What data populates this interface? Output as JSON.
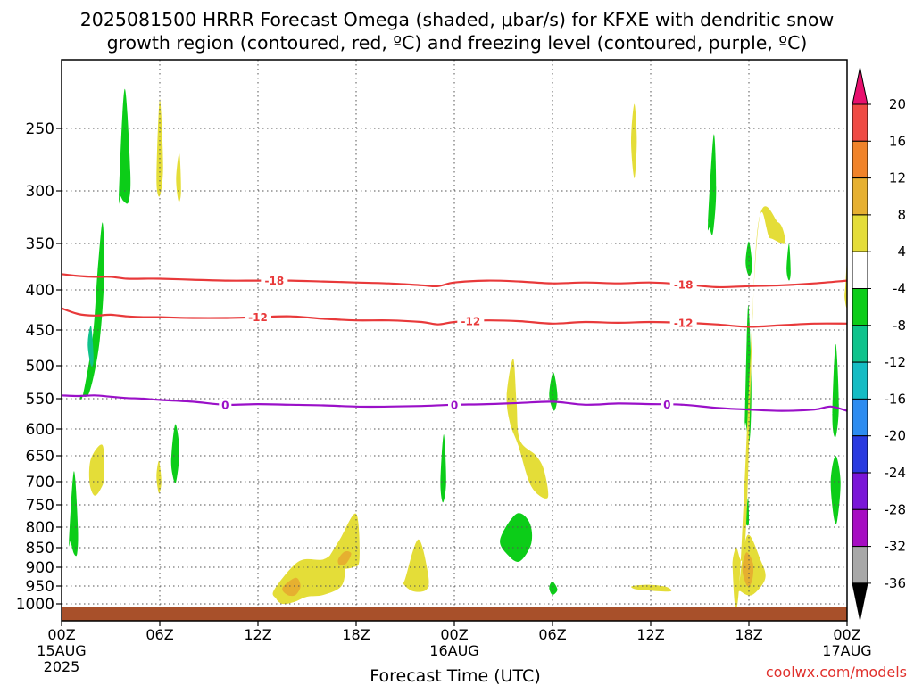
{
  "title_line1": "2025081500 HRRR Forecast Omega (shaded, μbar/s) for KFXE with dendritic snow",
  "title_line2": "growth region (contoured, red, ºC) and freezing level (contoured, purple, ºC)",
  "xlabel": "Forecast Time (UTC)",
  "credit": "coolwx.com/models",
  "chart_data": {
    "type": "time-height",
    "ylabel": "",
    "ylevels": [
      250,
      300,
      350,
      400,
      450,
      500,
      550,
      600,
      650,
      700,
      750,
      800,
      850,
      900,
      950,
      1000
    ],
    "ylim": [
      1040,
      180
    ],
    "xlim": [
      0,
      48
    ],
    "x_ticks": [
      {
        "hour": 0,
        "label": "00Z",
        "sub1": "15AUG",
        "sub2": "2025"
      },
      {
        "hour": 6,
        "label": "06Z",
        "sub1": "",
        "sub2": ""
      },
      {
        "hour": 12,
        "label": "12Z",
        "sub1": "",
        "sub2": ""
      },
      {
        "hour": 18,
        "label": "18Z",
        "sub1": "",
        "sub2": ""
      },
      {
        "hour": 24,
        "label": "00Z",
        "sub1": "16AUG",
        "sub2": ""
      },
      {
        "hour": 30,
        "label": "06Z",
        "sub1": "",
        "sub2": ""
      },
      {
        "hour": 36,
        "label": "12Z",
        "sub1": "",
        "sub2": ""
      },
      {
        "hour": 42,
        "label": "18Z",
        "sub1": "",
        "sub2": ""
      },
      {
        "hour": 48,
        "label": "00Z",
        "sub1": "17AUG",
        "sub2": ""
      }
    ],
    "colorbar": {
      "ticks": [
        "20",
        "16",
        "12",
        "8",
        "4",
        "-4",
        "-8",
        "-12",
        "-16",
        "-20",
        "-24",
        "-28",
        "-32",
        "-36"
      ],
      "colors": [
        "#e8106e",
        "#ef4b44",
        "#f0832a",
        "#e6b030",
        "#e4dd38",
        "#ffffff",
        "#0ccd18",
        "#0fc38c",
        "#15bcc4",
        "#2d8cf0",
        "#2a3ae0",
        "#7a16d8",
        "#a60dc2",
        "#a8a8a8",
        "#000000"
      ]
    },
    "contours": [
      {
        "name": "-18",
        "color": "#e8393a",
        "kind": "dendritic",
        "x": [
          0,
          1,
          2,
          3,
          4,
          5,
          6,
          8,
          10,
          12,
          14,
          16,
          18,
          20,
          22,
          23,
          24,
          26,
          28,
          30,
          32,
          34,
          36,
          38,
          40,
          42,
          44,
          46,
          48
        ],
        "p": [
          383,
          385,
          386,
          386,
          388,
          388,
          388,
          389,
          390,
          390,
          390,
          391,
          392,
          393,
          395,
          396,
          392,
          390,
          391,
          393,
          392,
          393,
          392,
          394,
          397,
          396,
          395,
          393,
          390
        ],
        "labels_at": [
          13,
          38
        ]
      },
      {
        "name": "-12",
        "color": "#e8393a",
        "kind": "dendritic",
        "x": [
          0,
          1,
          2,
          3,
          4,
          5,
          6,
          8,
          10,
          12,
          14,
          16,
          18,
          20,
          22,
          23,
          24,
          26,
          28,
          30,
          32,
          34,
          36,
          38,
          40,
          42,
          44,
          46,
          48
        ],
        "p": [
          423,
          430,
          432,
          431,
          433,
          434,
          434,
          435,
          435,
          434,
          433,
          436,
          438,
          438,
          440,
          443,
          440,
          438,
          439,
          442,
          440,
          441,
          440,
          441,
          443,
          446,
          444,
          442,
          442
        ],
        "labels_at": [
          12,
          25,
          38
        ]
      },
      {
        "name": "0",
        "color": "#9a10c8",
        "kind": "freezing",
        "x": [
          0,
          1,
          2,
          3,
          4,
          5,
          6,
          8,
          10,
          12,
          14,
          16,
          18,
          20,
          22,
          24,
          26,
          28,
          30,
          32,
          34,
          36,
          38,
          40,
          42,
          44,
          46,
          47,
          48
        ],
        "p": [
          545,
          546,
          545,
          547,
          549,
          550,
          552,
          555,
          560,
          559,
          560,
          561,
          563,
          563,
          562,
          560,
          559,
          557,
          555,
          560,
          558,
          559,
          560,
          565,
          568,
          570,
          568,
          563,
          570
        ],
        "labels_at": [
          10,
          24,
          37
        ]
      }
    ],
    "omega_regions": [
      {
        "value": -6,
        "color": "#0ccd18",
        "x": [
          1.3,
          1.9,
          2.2,
          2.5,
          2.6,
          2.3,
          1.7,
          1.2,
          1.1
        ],
        "p": [
          545,
          460,
          380,
          330,
          385,
          470,
          540,
          545,
          545
        ]
      },
      {
        "value": -6,
        "color": "#0ccd18",
        "x": [
          3.5,
          3.85,
          4.2,
          4.1,
          3.8,
          3.6
        ],
        "p": [
          305,
          210,
          285,
          310,
          310,
          305
        ]
      },
      {
        "value": -6,
        "color": "#0ccd18",
        "x": [
          0.45,
          0.75,
          1.0,
          0.95,
          0.75,
          0.55
        ],
        "p": [
          835,
          680,
          800,
          865,
          865,
          835
        ]
      },
      {
        "value": -6,
        "color": "#0ccd18",
        "x": [
          6.7,
          6.95,
          7.2,
          7.0,
          6.8
        ],
        "p": [
          655,
          592,
          640,
          700,
          690
        ]
      },
      {
        "value": -6,
        "color": "#0ccd18",
        "x": [
          23.15,
          23.35,
          23.5,
          23.3
        ],
        "p": [
          700,
          610,
          700,
          745
        ]
      },
      {
        "value": -6,
        "color": "#0ccd18",
        "x": [
          26.8,
          27.8,
          28.6,
          28.7,
          28.0,
          27.3
        ],
        "p": [
          830,
          770,
          790,
          840,
          885,
          870
        ]
      },
      {
        "value": -6,
        "color": "#0ccd18",
        "x": [
          29.8,
          30.05,
          30.3,
          30.1
        ],
        "p": [
          545,
          510,
          545,
          570
        ]
      },
      {
        "value": -6,
        "color": "#0ccd18",
        "x": [
          29.8,
          30.0,
          30.3,
          30.0
        ],
        "p": [
          955,
          938,
          960,
          975
        ]
      },
      {
        "value": -6,
        "color": "#0ccd18",
        "x": [
          39.5,
          39.85,
          40.0,
          39.8,
          39.6
        ],
        "p": [
          330,
          255,
          300,
          340,
          335
        ]
      },
      {
        "value": -6,
        "color": "#0ccd18",
        "x": [
          41.75,
          41.95,
          42.15,
          42.05,
          41.8
        ],
        "p": [
          590,
          420,
          525,
          620,
          590
        ]
      },
      {
        "value": -6,
        "color": "#0ccd18",
        "x": [
          41.8,
          41.95,
          42.0,
          41.85
        ],
        "p": [
          785,
          735,
          790,
          795
        ]
      },
      {
        "value": -6,
        "color": "#0ccd18",
        "x": [
          41.8,
          42.0,
          42.2,
          42.0
        ],
        "p": [
          370,
          348,
          375,
          385
        ]
      },
      {
        "value": -6,
        "color": "#0ccd18",
        "x": [
          44.3,
          44.45,
          44.55,
          44.45
        ],
        "p": [
          378,
          350,
          380,
          390
        ]
      },
      {
        "value": -6,
        "color": "#0ccd18",
        "x": [
          47.1,
          47.3,
          47.5,
          47.3
        ],
        "p": [
          580,
          470,
          560,
          615
        ]
      },
      {
        "value": -6,
        "color": "#0ccd18",
        "x": [
          47.0,
          47.3,
          47.6,
          47.4,
          47.2
        ],
        "p": [
          700,
          650,
          700,
          785,
          780
        ]
      },
      {
        "value": -10,
        "color": "#0fc38c",
        "x": [
          1.6,
          1.8,
          1.95,
          1.8
        ],
        "p": [
          470,
          445,
          490,
          500
        ]
      },
      {
        "value": 6,
        "color": "#e4dd38",
        "x": [
          1.8,
          2.5,
          2.6,
          2.4,
          2.0,
          1.7
        ],
        "p": [
          655,
          630,
          690,
          715,
          730,
          700
        ]
      },
      {
        "value": 6,
        "color": "#e4dd38",
        "x": [
          5.8,
          6.0,
          6.2,
          6.0
        ],
        "p": [
          290,
          220,
          280,
          305
        ]
      },
      {
        "value": 6,
        "color": "#e4dd38",
        "x": [
          7.0,
          7.2,
          7.3,
          7.15
        ],
        "p": [
          290,
          270,
          300,
          310
        ]
      },
      {
        "value": 6,
        "color": "#e4dd38",
        "x": [
          5.8,
          5.95,
          6.1,
          5.95
        ],
        "p": [
          690,
          660,
          700,
          725
        ]
      },
      {
        "value": 6,
        "color": "#e4dd38",
        "x": [
          13.0,
          14.5,
          16.0,
          17.0,
          17.3,
          17.1,
          16.0,
          15.0,
          14.2,
          13.5,
          13.1
        ],
        "p": [
          960,
          885,
          880,
          855,
          900,
          950,
          975,
          980,
          995,
          1000,
          985
        ]
      },
      {
        "value": 6,
        "color": "#e4dd38",
        "x": [
          16.0,
          17.0,
          18.0,
          18.2,
          17.8,
          17.0,
          16.2
        ],
        "p": [
          900,
          830,
          770,
          880,
          900,
          905,
          910
        ]
      },
      {
        "value": 6,
        "color": "#e4dd38",
        "x": [
          21.0,
          21.8,
          22.4,
          22.3,
          21.5,
          20.9
        ],
        "p": [
          930,
          830,
          920,
          960,
          965,
          945
        ]
      },
      {
        "value": 6,
        "color": "#e4dd38",
        "x": [
          27.2,
          27.6,
          27.8,
          28.0,
          29.0,
          29.5,
          29.7,
          28.7,
          27.9,
          27.4
        ],
        "p": [
          545,
          490,
          555,
          620,
          650,
          680,
          735,
          710,
          630,
          590
        ]
      },
      {
        "value": 6,
        "color": "#e4dd38",
        "x": [
          34.8,
          35.0,
          35.15,
          35.0
        ],
        "p": [
          260,
          225,
          260,
          290
        ]
      },
      {
        "value": 6,
        "color": "#e4dd38",
        "x": [
          34.9,
          36.0,
          37.0,
          37.2,
          36.0,
          35.0
        ],
        "p": [
          950,
          947,
          953,
          965,
          963,
          958
        ]
      },
      {
        "value": 6,
        "color": "#e4dd38",
        "x": [
          42.5,
          43.8,
          44.2,
          43.3,
          42.5,
          41.4,
          41.0,
          41.2,
          41.8
        ],
        "p": [
          340,
          330,
          350,
          345,
          345,
          955,
          900,
          850,
          820
        ]
      },
      {
        "value": 6,
        "color": "#e4dd38",
        "x": [
          41.4,
          41.9,
          42.7,
          43.0,
          42.2,
          41.5
        ],
        "p": [
          950,
          820,
          880,
          930,
          975,
          965
        ]
      },
      {
        "value": 6,
        "color": "#e4dd38",
        "x": [
          47.9,
          48.0,
          48.0,
          47.85
        ],
        "p": [
          395,
          370,
          420,
          410
        ]
      },
      {
        "value": 10,
        "color": "#e6b030",
        "x": [
          13.5,
          14.3,
          14.6,
          14.3,
          13.8
        ],
        "p": [
          955,
          928,
          950,
          975,
          975
        ]
      },
      {
        "value": 10,
        "color": "#e6b030",
        "x": [
          16.9,
          17.3,
          17.7,
          17.4,
          17.0
        ],
        "p": [
          880,
          860,
          865,
          890,
          895
        ]
      },
      {
        "value": 10,
        "color": "#e6b030",
        "x": [
          41.6,
          41.85,
          42.25,
          42.2,
          41.9
        ],
        "p": [
          905,
          862,
          890,
          935,
          950
        ]
      }
    ]
  }
}
